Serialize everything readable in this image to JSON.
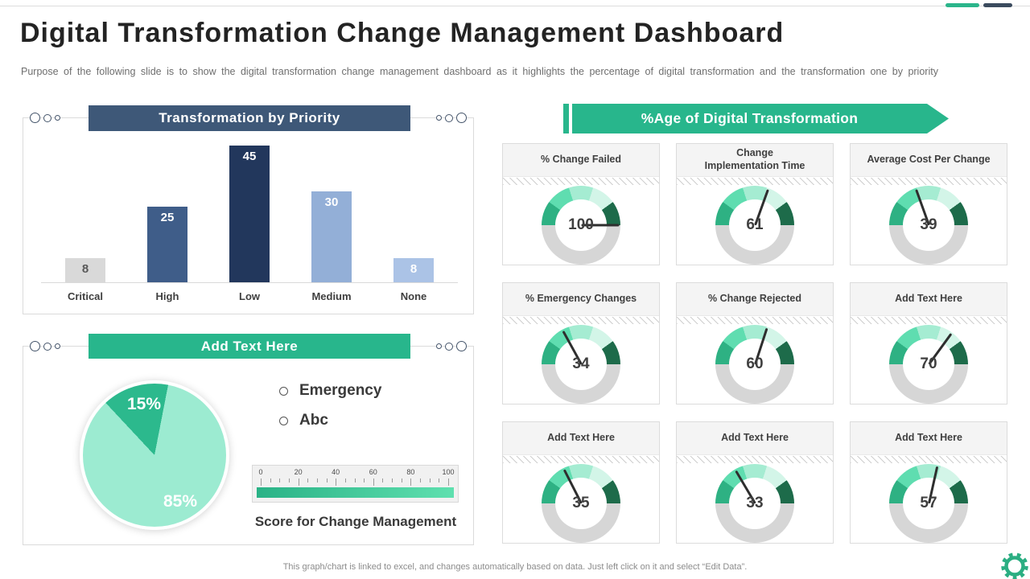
{
  "slide": {
    "title": "Digital Transformation Change Management Dashboard",
    "subtitle": "Purpose of the following slide is to show the digital transformation change management dashboard as it highlights the percentage of digital transformation and the transformation one by priority",
    "footer": "This graph/chart is linked to excel, and changes automatically based on data. Just left click on it and select “Edit Data”."
  },
  "accents": {
    "teal": "#2BB58B",
    "navy": "#3B4B5E",
    "header_blue": "#3E5878",
    "header_green": "#28B68C"
  },
  "bar_panel": {
    "title": "Transformation by Priority"
  },
  "pie_panel": {
    "title": "Add Text Here"
  },
  "right_panel": {
    "title": "%Age of Digital Transformation"
  },
  "chart_data": [
    {
      "type": "bar",
      "title": "Transformation by Priority",
      "categories": [
        "Critical",
        "High",
        "Low",
        "Medium",
        "None"
      ],
      "values": [
        8,
        25,
        45,
        30,
        8
      ],
      "bar_colors": [
        "#D9D9D9",
        "#3F5D89",
        "#22375C",
        "#93AFD7",
        "#ABC3E6"
      ],
      "value_label_colors": [
        "#595959",
        "#FFFFFF",
        "#FFFFFF",
        "#FFFFFF",
        "#FFFFFF"
      ],
      "ylim": [
        0,
        45
      ],
      "grid": false,
      "legend": "none"
    },
    {
      "type": "pie",
      "title": "Add Text Here",
      "labels": [
        "Emergency",
        "Abc"
      ],
      "values": [
        15,
        85
      ],
      "value_labels": [
        "15%",
        "85%"
      ],
      "colors": [
        "#2CB98D",
        "#9CEBD1"
      ],
      "start_angle_deg": -43,
      "legend_position": "right"
    },
    {
      "type": "line",
      "subtype": "linear-gauge",
      "title": "Score for Change Management",
      "min": 0,
      "max": 100,
      "tick_labels": [
        "0",
        "20",
        "40",
        "60",
        "80",
        "100"
      ],
      "minor_tick_step": 5,
      "bar_gradient": [
        "#29B286",
        "#5FE0AF"
      ]
    },
    {
      "type": "bar",
      "subtype": "donut-gauge-grid",
      "title": "%Age of Digital Transformation",
      "gauges": [
        {
          "label": "% Change Failed",
          "value": 100
        },
        {
          "label": "Change\nImplementation Time",
          "value": 61
        },
        {
          "label": "Average Cost Per Change",
          "value": 39
        },
        {
          "label": "% Emergency Changes",
          "value": 34
        },
        {
          "label": "% Change Rejected",
          "value": 60
        },
        {
          "label": "Add Text Here",
          "value": 70
        },
        {
          "label": "Add Text Here",
          "value": 35
        },
        {
          "label": "Add Text Here",
          "value": 33
        },
        {
          "label": "Add Text Here",
          "value": 57
        }
      ],
      "scale": [
        0,
        100
      ],
      "segment_colors": [
        "#2EB183",
        "#5FDDB0",
        "#A5ECD2",
        "#D3F5E8",
        "#1D6B4A"
      ],
      "track_color": "#D6D6D6"
    }
  ]
}
